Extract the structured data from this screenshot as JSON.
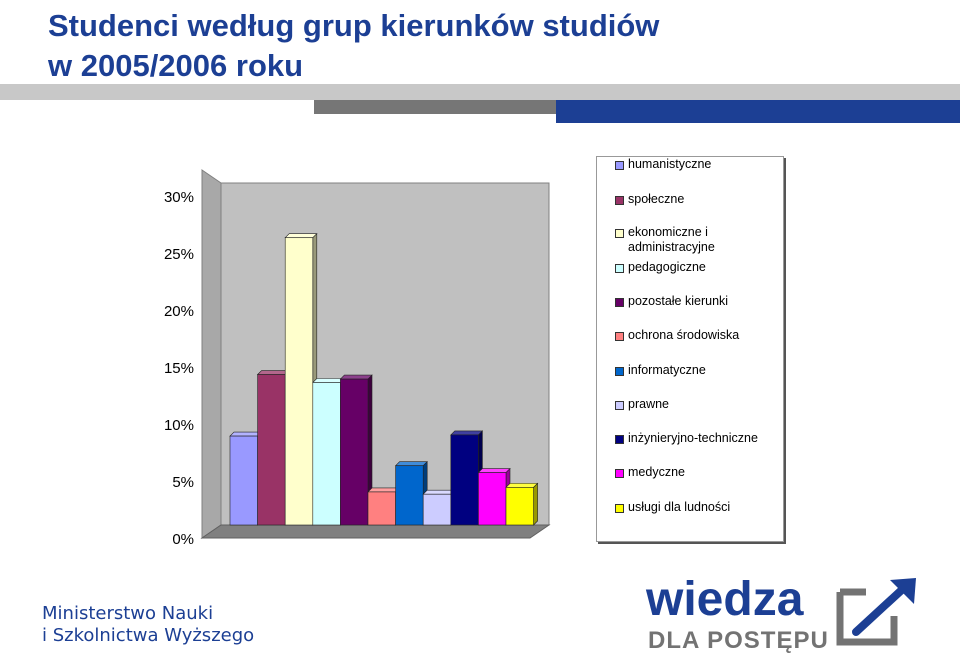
{
  "slide": {
    "title_line1": "Studenci według grup kierunków studiów",
    "title_line2": "w 2005/2006 roku",
    "ministry_line1": "Ministerstwo Nauki",
    "ministry_line2": "i Szkolnictwa Wyższego",
    "logo_word": "wiedza",
    "logo_tagline": "DLA POSTĘPU",
    "brand_color": "#1c3f94"
  },
  "chart_data": {
    "type": "bar",
    "title": "",
    "xlabel": "",
    "ylabel": "",
    "ylim": [
      0,
      30
    ],
    "y_ticks": [
      "0%",
      "5%",
      "10%",
      "15%",
      "20%",
      "25%",
      "30%"
    ],
    "grid": false,
    "legend_position": "right",
    "series": [
      {
        "name": "humanistyczne",
        "value": 7.8,
        "color": "#9999ff"
      },
      {
        "name": "społeczne",
        "value": 13.2,
        "color": "#993366"
      },
      {
        "name": "ekonomiczne i administracyjne",
        "value": 25.2,
        "color": "#ffffcc"
      },
      {
        "name": "pedagogiczne",
        "value": 12.5,
        "color": "#ccffff"
      },
      {
        "name": "pozostałe kierunki",
        "value": 12.8,
        "color": "#660066"
      },
      {
        "name": "ochrona środowiska",
        "value": 2.9,
        "color": "#ff8080"
      },
      {
        "name": "informatyczne",
        "value": 5.2,
        "color": "#0066cc"
      },
      {
        "name": "prawne",
        "value": 2.7,
        "color": "#ccccff"
      },
      {
        "name": "inżynieryjno-techniczne",
        "value": 7.9,
        "color": "#000080"
      },
      {
        "name": "medyczne",
        "value": 4.6,
        "color": "#ff00ff"
      },
      {
        "name": "usługi dla ludności",
        "value": 3.3,
        "color": "#ffff00"
      }
    ]
  }
}
